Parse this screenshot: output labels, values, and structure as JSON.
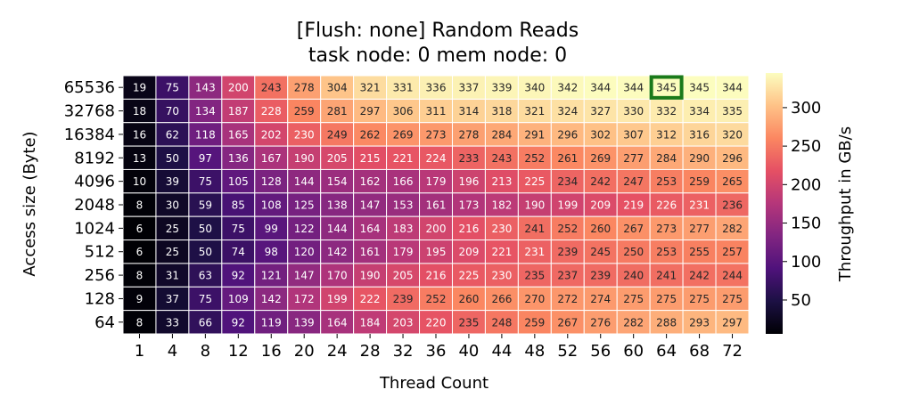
{
  "chart_data": {
    "type": "heatmap",
    "title_line1": "[Flush: none] Random Reads",
    "title_line2": "task node: 0 mem node: 0",
    "xlabel": "Thread Count",
    "ylabel": "Access size (Byte)",
    "colorbar_label": "Throughput in GB/s",
    "colorbar_ticks": [
      "50",
      "100",
      "150",
      "200",
      "250",
      "300"
    ],
    "colorbar_range": [
      6,
      345
    ],
    "x_categories": [
      "1",
      "4",
      "8",
      "12",
      "16",
      "20",
      "24",
      "28",
      "32",
      "36",
      "40",
      "44",
      "48",
      "52",
      "56",
      "60",
      "64",
      "68",
      "72"
    ],
    "y_categories": [
      "65536",
      "32768",
      "16384",
      "8192",
      "4096",
      "2048",
      "1024",
      "512",
      "256",
      "128",
      "64"
    ],
    "values": [
      [
        19,
        75,
        143,
        200,
        243,
        278,
        304,
        321,
        331,
        336,
        337,
        339,
        340,
        342,
        344,
        344,
        345,
        345,
        344
      ],
      [
        18,
        70,
        134,
        187,
        228,
        259,
        281,
        297,
        306,
        311,
        314,
        318,
        321,
        324,
        327,
        330,
        332,
        334,
        335
      ],
      [
        16,
        62,
        118,
        165,
        202,
        230,
        249,
        262,
        269,
        273,
        278,
        284,
        291,
        296,
        302,
        307,
        312,
        316,
        320
      ],
      [
        13,
        50,
        97,
        136,
        167,
        190,
        205,
        215,
        221,
        224,
        233,
        243,
        252,
        261,
        269,
        277,
        284,
        290,
        296
      ],
      [
        10,
        39,
        75,
        105,
        128,
        144,
        154,
        162,
        166,
        179,
        196,
        213,
        225,
        234,
        242,
        247,
        253,
        259,
        265
      ],
      [
        8,
        30,
        59,
        85,
        108,
        125,
        138,
        147,
        153,
        161,
        173,
        182,
        190,
        199,
        209,
        219,
        226,
        231,
        236
      ],
      [
        6,
        25,
        50,
        75,
        99,
        122,
        144,
        164,
        183,
        200,
        216,
        230,
        241,
        252,
        260,
        267,
        273,
        277,
        282
      ],
      [
        6,
        25,
        50,
        74,
        98,
        120,
        142,
        161,
        179,
        195,
        209,
        221,
        231,
        239,
        245,
        250,
        253,
        255,
        257
      ],
      [
        8,
        31,
        63,
        92,
        121,
        147,
        170,
        190,
        205,
        216,
        225,
        230,
        235,
        237,
        239,
        240,
        241,
        242,
        244
      ],
      [
        9,
        37,
        75,
        109,
        142,
        172,
        199,
        222,
        239,
        252,
        260,
        266,
        270,
        272,
        274,
        275,
        275,
        275,
        275
      ],
      [
        8,
        33,
        66,
        92,
        119,
        139,
        164,
        184,
        203,
        220,
        235,
        248,
        259,
        267,
        276,
        282,
        288,
        293,
        297
      ]
    ],
    "highlight": {
      "row": 0,
      "col": 16,
      "color": "#1a7a1a"
    }
  }
}
